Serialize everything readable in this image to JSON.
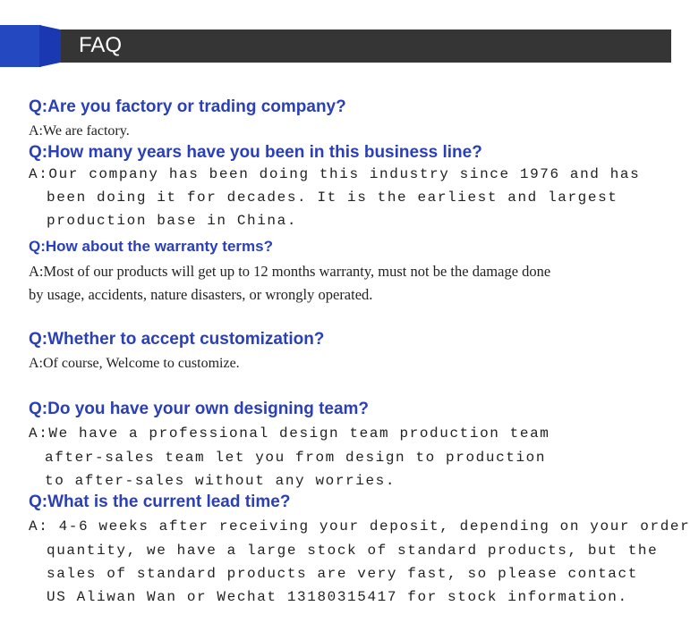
{
  "header": {
    "title": "FAQ"
  },
  "faq": [
    {
      "q": "Q:Are you factory or trading company?",
      "a": [
        "A:We are factory."
      ]
    },
    {
      "q": "Q:How many years have you been in this business line?",
      "a": [
        "A:Our company has been doing this industry since 1976 and has",
        "been doing it for decades. It is the earliest and largest",
        "production base in China."
      ]
    },
    {
      "q": "Q:How about the warranty terms?",
      "a": [
        "A:Most of our products will get up to 12 months warranty, must not be the damage done",
        "by usage, accidents, nature disasters, or wrongly operated."
      ]
    },
    {
      "q": "Q:Whether to accept customization?",
      "a": [
        "A:Of course, Welcome to customize."
      ]
    },
    {
      "q": "Q:Do you have your own designing team?",
      "a": [
        "A:We have a professional design team production team",
        "after-sales team let you from design to production",
        "to after-sales without any worries."
      ]
    },
    {
      "q": "Q:What is the current lead time?",
      "a": [
        "A: 4-6 weeks after receiving your deposit, depending on your order",
        "quantity, we have a large stock of standard products, but the",
        "sales of standard products are very fast, so please contact",
        "US Aliwan Wan or Wechat 13180315417 for stock information."
      ]
    }
  ],
  "colors": {
    "question": "#2a3fb8",
    "header_bar": "#353535",
    "accent": "#2448c0"
  }
}
